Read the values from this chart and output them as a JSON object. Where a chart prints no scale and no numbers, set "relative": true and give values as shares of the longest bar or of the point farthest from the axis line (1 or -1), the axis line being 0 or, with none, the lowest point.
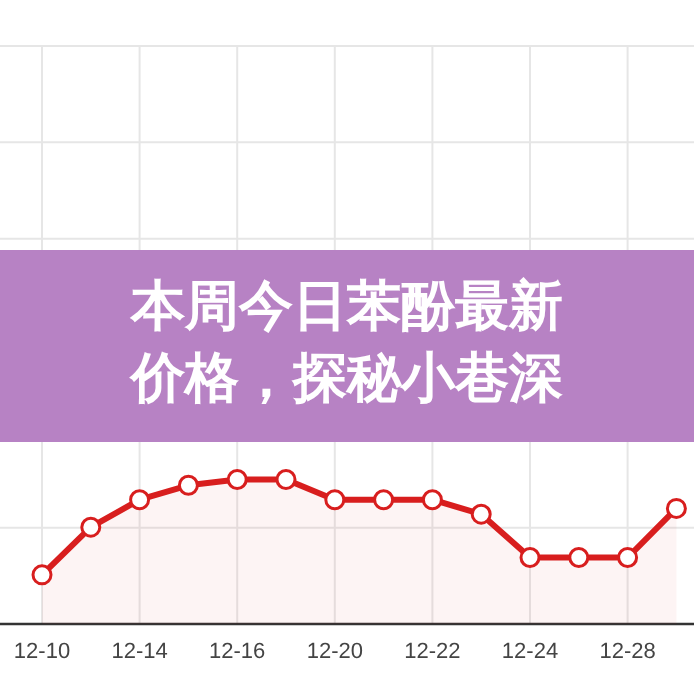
{
  "chart_data": {
    "type": "area",
    "title": "本周今日苯酚最新价格，探秘小巷深",
    "categories": [
      "12-10",
      null,
      "12-14",
      null,
      "12-16",
      null,
      "12-20",
      null,
      "12-22",
      null,
      "12-24",
      null,
      "12-28",
      null
    ],
    "relative": true,
    "series": [
      {
        "color": "#d81e1e",
        "values": [
          0.34,
          0.67,
          0.86,
          0.96,
          1,
          1,
          0.86,
          0.86,
          0.86,
          0.76,
          0.46,
          0.46,
          0.46,
          0.8
        ]
      }
    ],
    "marker": "circle",
    "line_style": "solid",
    "grid": true
  }
}
